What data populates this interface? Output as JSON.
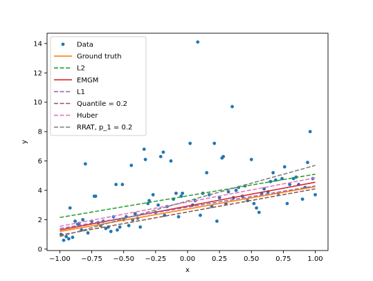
{
  "chart_data": {
    "type": "scatter",
    "title": "",
    "xlabel": "x",
    "ylabel": "y",
    "xlim": [
      -1.1,
      1.1
    ],
    "ylim": [
      -0.1,
      14.7
    ],
    "xticks": [
      -1.0,
      -0.75,
      -0.5,
      -0.25,
      0.0,
      0.25,
      0.5,
      0.75,
      1.0
    ],
    "xtick_labels": [
      "−1.00",
      "−0.75",
      "−0.50",
      "−0.25",
      "0.00",
      "0.25",
      "0.50",
      "0.75",
      "1.00"
    ],
    "yticks": [
      0,
      2,
      4,
      6,
      8,
      10,
      12,
      14
    ],
    "ytick_labels": [
      "0",
      "2",
      "4",
      "6",
      "8",
      "10",
      "12",
      "14"
    ],
    "grid": false,
    "legend_position": "upper-left",
    "scatter": {
      "name": "Data",
      "color": "#1f77b4",
      "points": [
        [
          -0.99,
          1.0
        ],
        [
          -0.97,
          0.6
        ],
        [
          -0.95,
          0.85
        ],
        [
          -0.93,
          0.7
        ],
        [
          -0.92,
          2.8
        ],
        [
          -0.9,
          0.8
        ],
        [
          -0.88,
          1.9
        ],
        [
          -0.86,
          1.7
        ],
        [
          -0.85,
          1.75
        ],
        [
          -0.83,
          1.3
        ],
        [
          -0.82,
          2.0
        ],
        [
          -0.8,
          5.8
        ],
        [
          -0.78,
          1.1
        ],
        [
          -0.75,
          1.9
        ],
        [
          -0.73,
          3.6
        ],
        [
          -0.72,
          3.6
        ],
        [
          -0.7,
          1.8
        ],
        [
          -0.68,
          1.6
        ],
        [
          -0.66,
          1.9
        ],
        [
          -0.64,
          1.4
        ],
        [
          -0.62,
          1.5
        ],
        [
          -0.6,
          1.2
        ],
        [
          -0.58,
          2.2
        ],
        [
          -0.56,
          4.4
        ],
        [
          -0.55,
          1.3
        ],
        [
          -0.53,
          1.5
        ],
        [
          -0.51,
          4.4
        ],
        [
          -0.5,
          2.0
        ],
        [
          -0.48,
          2.2
        ],
        [
          -0.46,
          1.6
        ],
        [
          -0.44,
          5.7
        ],
        [
          -0.43,
          2.0
        ],
        [
          -0.41,
          2.4
        ],
        [
          -0.39,
          2.1
        ],
        [
          -0.37,
          1.5
        ],
        [
          -0.34,
          6.8
        ],
        [
          -0.33,
          6.1
        ],
        [
          -0.31,
          3.1
        ],
        [
          -0.3,
          3.3
        ],
        [
          -0.27,
          3.7
        ],
        [
          -0.25,
          2.5
        ],
        [
          -0.23,
          3.0
        ],
        [
          -0.21,
          6.3
        ],
        [
          -0.19,
          6.6
        ],
        [
          -0.18,
          2.3
        ],
        [
          -0.16,
          2.9
        ],
        [
          -0.13,
          6.0
        ],
        [
          -0.11,
          3.4
        ],
        [
          -0.09,
          3.8
        ],
        [
          -0.07,
          2.2
        ],
        [
          -0.05,
          3.6
        ],
        [
          -0.04,
          3.8
        ],
        [
          0.02,
          7.2
        ],
        [
          0.04,
          3.0
        ],
        [
          0.06,
          3.3
        ],
        [
          0.08,
          14.1
        ],
        [
          0.1,
          2.3
        ],
        [
          0.12,
          3.8
        ],
        [
          0.15,
          5.2
        ],
        [
          0.17,
          3.7
        ],
        [
          0.19,
          2.9
        ],
        [
          0.21,
          7.2
        ],
        [
          0.23,
          1.9
        ],
        [
          0.25,
          3.5
        ],
        [
          0.27,
          6.2
        ],
        [
          0.28,
          6.3
        ],
        [
          0.3,
          3.1
        ],
        [
          0.32,
          3.9
        ],
        [
          0.35,
          9.7
        ],
        [
          0.36,
          3.5
        ],
        [
          0.38,
          4.0
        ],
        [
          0.4,
          4.2
        ],
        [
          0.43,
          3.6
        ],
        [
          0.45,
          4.3
        ],
        [
          0.47,
          3.3
        ],
        [
          0.5,
          6.1
        ],
        [
          0.52,
          3.1
        ],
        [
          0.54,
          2.8
        ],
        [
          0.56,
          2.5
        ],
        [
          0.58,
          3.8
        ],
        [
          0.6,
          4.1
        ],
        [
          0.63,
          3.9
        ],
        [
          0.65,
          4.6
        ],
        [
          0.67,
          5.2
        ],
        [
          0.69,
          4.7
        ],
        [
          0.71,
          3.8
        ],
        [
          0.74,
          4.8
        ],
        [
          0.76,
          5.6
        ],
        [
          0.78,
          3.1
        ],
        [
          0.8,
          4.4
        ],
        [
          0.83,
          4.8
        ],
        [
          0.85,
          4.9
        ],
        [
          0.87,
          4.4
        ],
        [
          0.9,
          3.4
        ],
        [
          0.92,
          4.2
        ],
        [
          0.94,
          5.9
        ],
        [
          0.96,
          8.0
        ],
        [
          0.98,
          4.8
        ],
        [
          1.0,
          3.7
        ]
      ]
    },
    "series": [
      {
        "name": "Ground truth",
        "color": "#ff7f0e",
        "style": "solid",
        "x": [
          -1.0,
          1.0
        ],
        "y": [
          1.2,
          4.25
        ]
      },
      {
        "name": "L2",
        "color": "#2ca02c",
        "style": "dashed",
        "x": [
          -1.0,
          1.0
        ],
        "y": [
          2.15,
          5.1
        ]
      },
      {
        "name": "EMGM",
        "color": "#d62728",
        "style": "solid",
        "x": [
          -1.0,
          1.0
        ],
        "y": [
          1.3,
          4.55
        ]
      },
      {
        "name": "L1",
        "color": "#9467bd",
        "style": "dashed",
        "x": [
          -1.0,
          1.0
        ],
        "y": [
          1.4,
          4.3
        ]
      },
      {
        "name": "Quantile = 0.2",
        "color": "#8c564b",
        "style": "dashed",
        "x": [
          -1.0,
          1.0
        ],
        "y": [
          0.95,
          4.1
        ]
      },
      {
        "name": "Huber",
        "color": "#e377c2",
        "style": "dashed",
        "x": [
          -1.0,
          1.0
        ],
        "y": [
          1.55,
          4.85
        ]
      },
      {
        "name": "RRAT, p_1 = 0.2",
        "color": "#7f7f7f",
        "style": "dashed",
        "x": [
          -1.0,
          1.0
        ],
        "y": [
          0.85,
          5.7
        ]
      }
    ]
  }
}
